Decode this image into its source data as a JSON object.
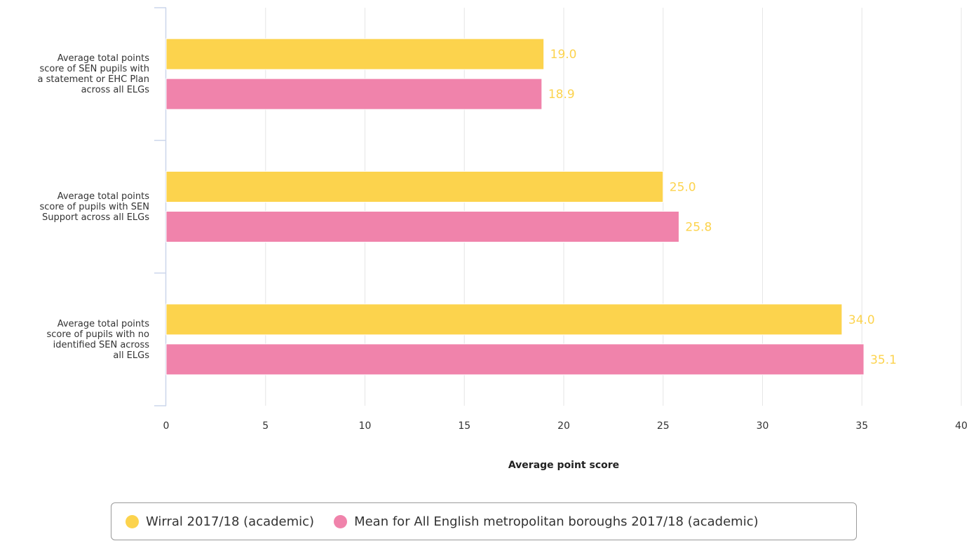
{
  "chart_data": {
    "type": "bar",
    "orientation": "horizontal",
    "categories": [
      [
        "Average total points",
        "score of SEN pupils with",
        "a statement or EHC Plan",
        "across all ELGs"
      ],
      [
        "Average total points",
        "score of pupils with SEN",
        "Support across all ELGs"
      ],
      [
        "Average total points",
        "score of pupils with no",
        "identified SEN across",
        "all ELGs"
      ]
    ],
    "series": [
      {
        "name": "Wirral 2017/18 (academic)",
        "color": "#fcd34d",
        "values": [
          19.0,
          25.0,
          34.0
        ],
        "labels": [
          "19.0",
          "25.0",
          "34.0"
        ]
      },
      {
        "name": "Mean for All English metropolitan boroughs 2017/18 (academic)",
        "color": "#f083ab",
        "values": [
          18.9,
          25.8,
          35.1
        ],
        "labels": [
          "18.9",
          "25.8",
          "35.1"
        ]
      }
    ],
    "xlabel": "Average point score",
    "xlim": [
      0,
      40
    ],
    "xticks": [
      "0",
      "5",
      "10",
      "15",
      "20",
      "25",
      "30",
      "35",
      "40"
    ],
    "grid": true,
    "legend_position": "bottom",
    "data_label_color": "#fcd34d"
  }
}
